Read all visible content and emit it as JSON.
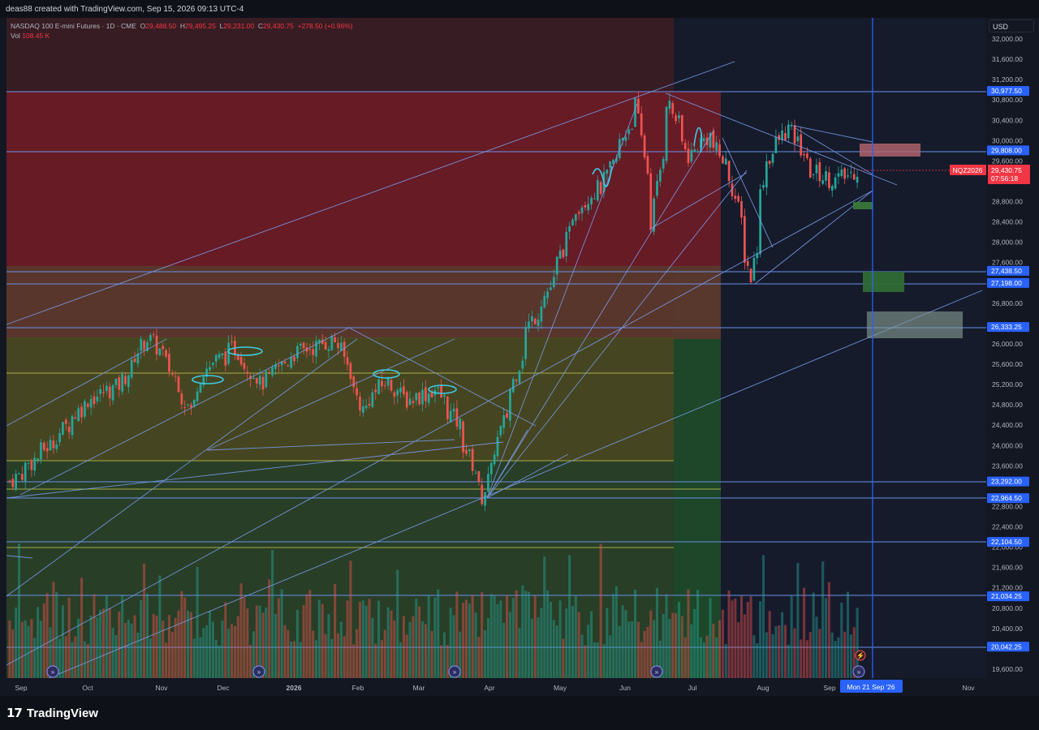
{
  "header": {
    "credit": "deas88 created with TradingView.com, Sep 15, 2026 09:13 UTC-4"
  },
  "legend": {
    "symbol": "NASDAQ 100 E-mini Futures · 1D · CME",
    "open_label": "O",
    "open": "29,488.50",
    "high_label": "H",
    "high": "29,495.25",
    "low_label": "L",
    "low": "29,231.00",
    "close_label": "C",
    "close": "29,430.75",
    "change": "+278.50 (+0.96%)",
    "vol_label": "Vol",
    "vol": "108.45 K"
  },
  "currency": "USD",
  "footer": {
    "logo_text": "TradingView",
    "logo_mark": "17"
  },
  "colors": {
    "background": "#131722",
    "up": "#26a69a",
    "down": "#ef5350",
    "trendline": "#5b8def",
    "level_label": "#2962ff",
    "price_label": "#f23645"
  },
  "chart_data": {
    "type": "candlestick",
    "symbol": "NQZ2026",
    "last_price": "29,430.75",
    "countdown": "07:56:18",
    "y_range": [
      19400,
      32200
    ],
    "price_ticks": [
      "32,000.00",
      "31,600.00",
      "31,200.00",
      "30,800.00",
      "30,400.00",
      "30,000.00",
      "29,600.00",
      "28,800.00",
      "28,400.00",
      "28,000.00",
      "27,600.00",
      "26,800.00",
      "26,000.00",
      "25,600.00",
      "25,200.00",
      "24,800.00",
      "24,400.00",
      "24,000.00",
      "23,600.00",
      "22,800.00",
      "22,400.00",
      "22,000.00",
      "21,600.00",
      "21,200.00",
      "20,800.00",
      "20,400.00",
      "19,600.00"
    ],
    "level_labels": [
      {
        "text": "30,977.50",
        "value": 30977.5
      },
      {
        "text": "29,808.00",
        "value": 29808
      },
      {
        "text": "27,438.50",
        "value": 27438.5
      },
      {
        "text": "27,198.00",
        "value": 27198
      },
      {
        "text": "26,333.25",
        "value": 26333.25
      },
      {
        "text": "23,292.00",
        "value": 23292
      },
      {
        "text": "22,964.50",
        "value": 22964.5
      },
      {
        "text": "22,104.50",
        "value": 22104.5
      },
      {
        "text": "21,034.25",
        "value": 21034.25
      },
      {
        "text": "20,042.25",
        "value": 20042.25
      }
    ],
    "x_labels": [
      "Sep",
      "Oct",
      "Nov",
      "Dec",
      "2026",
      "Feb",
      "Mar",
      "Apr",
      "May",
      "Jun",
      "Jul",
      "Aug",
      "Sep",
      "Nov"
    ],
    "crosshair_date": "Mon 21 Sep '26",
    "price_path": [
      {
        "date": "2025-09-01",
        "price": 23300
      },
      {
        "date": "2025-09-20",
        "price": 24100
      },
      {
        "date": "2025-10-05",
        "price": 24900
      },
      {
        "date": "2025-10-20",
        "price": 25200
      },
      {
        "date": "2025-11-01",
        "price": 26200
      },
      {
        "date": "2025-11-10",
        "price": 25600
      },
      {
        "date": "2025-11-20",
        "price": 24700
      },
      {
        "date": "2025-11-26",
        "price": 25500
      },
      {
        "date": "2025-12-10",
        "price": 25900
      },
      {
        "date": "2025-12-22",
        "price": 25200
      },
      {
        "date": "2026-01-05",
        "price": 25800
      },
      {
        "date": "2026-01-25",
        "price": 26100
      },
      {
        "date": "2026-02-05",
        "price": 24700
      },
      {
        "date": "2026-02-15",
        "price": 25300
      },
      {
        "date": "2026-02-25",
        "price": 24900
      },
      {
        "date": "2026-03-10",
        "price": 25100
      },
      {
        "date": "2026-03-20",
        "price": 24400
      },
      {
        "date": "2026-03-31",
        "price": 23000
      },
      {
        "date": "2026-04-10",
        "price": 24600
      },
      {
        "date": "2026-04-20",
        "price": 26300
      },
      {
        "date": "2026-05-01",
        "price": 27200
      },
      {
        "date": "2026-05-12",
        "price": 28700
      },
      {
        "date": "2026-05-25",
        "price": 29200
      },
      {
        "date": "2026-06-08",
        "price": 30700
      },
      {
        "date": "2026-06-15",
        "price": 28400
      },
      {
        "date": "2026-06-22",
        "price": 30800
      },
      {
        "date": "2026-07-01",
        "price": 29700
      },
      {
        "date": "2026-07-10",
        "price": 30100
      },
      {
        "date": "2026-07-20",
        "price": 29300
      },
      {
        "date": "2026-07-29",
        "price": 27300
      },
      {
        "date": "2026-08-05",
        "price": 29600
      },
      {
        "date": "2026-08-15",
        "price": 30300
      },
      {
        "date": "2026-08-25",
        "price": 29400
      },
      {
        "date": "2026-09-05",
        "price": 29200
      },
      {
        "date": "2026-09-15",
        "price": 29430
      }
    ]
  }
}
